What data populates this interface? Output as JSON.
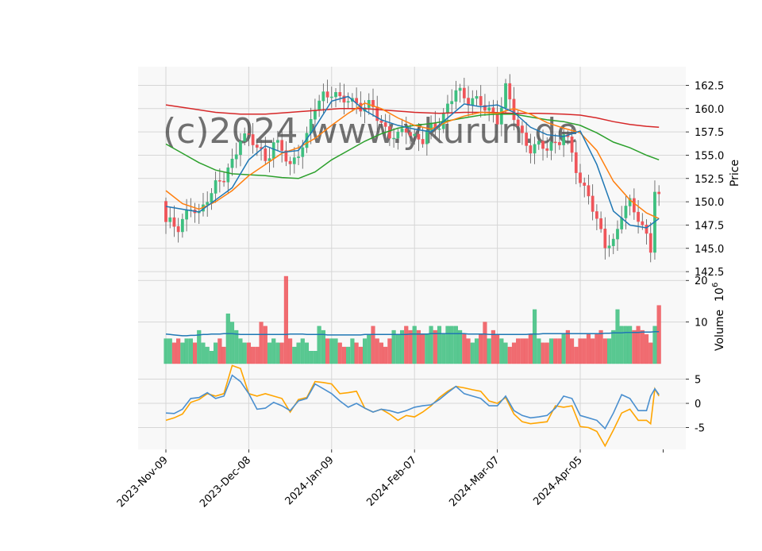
{
  "chart_data": {
    "type": "candlestick",
    "title": "",
    "watermark": "(c)2024 www.ykurun.de",
    "colors": {
      "up": "#3dbf7f",
      "down": "#ef5459",
      "ma_fast": "#1f77b4",
      "ma_mid": "#ff7f0e",
      "ma_slow": "#2ca02c",
      "ma_long": "#d62728",
      "macd": "#4a8fcf",
      "signal": "#ffa500",
      "volume_avg": "#1f77b4",
      "panel_bg": "#f8f8f8",
      "grid": "#d6d6d6"
    },
    "x_tick_labels": [
      "2023-Nov-09",
      "2023-Dec-08",
      "2024-Jan-09",
      "2024-Feb-07",
      "2024-Mar-07",
      "2024-Apr-05"
    ],
    "x_tick_bar_index": [
      0,
      20,
      40,
      60,
      80,
      100
    ],
    "bar_count": 120,
    "price_panel": {
      "ylabel": "Price",
      "ylim": [
        142.0,
        164.5
      ],
      "ticks": [
        "142.5",
        "145.0",
        "147.5",
        "150.0",
        "152.5",
        "155.0",
        "157.5",
        "160.0",
        "162.5"
      ],
      "ohlc_anchor_closes": [
        [
          0,
          147.5
        ],
        [
          3,
          147.6
        ],
        [
          6,
          149.3
        ],
        [
          8,
          148.3
        ],
        [
          10,
          150.8
        ],
        [
          12,
          151.8
        ],
        [
          14,
          152.3
        ],
        [
          16,
          154.2
        ],
        [
          18,
          157.2
        ],
        [
          20,
          156.7
        ],
        [
          22,
          155.8
        ],
        [
          24,
          154.7
        ],
        [
          26,
          156.3
        ],
        [
          28,
          155.4
        ],
        [
          30,
          153.8
        ],
        [
          32,
          155.6
        ],
        [
          34,
          156.6
        ],
        [
          36,
          160.2
        ],
        [
          38,
          161.6
        ],
        [
          40,
          161.8
        ],
        [
          42,
          160.6
        ],
        [
          44,
          161.2
        ],
        [
          46,
          160.7
        ],
        [
          48,
          159.9
        ],
        [
          50,
          160.1
        ],
        [
          52,
          158.6
        ],
        [
          54,
          157.2
        ],
        [
          56,
          156.7
        ],
        [
          58,
          158.1
        ],
        [
          60,
          157.0
        ],
        [
          62,
          156.5
        ],
        [
          64,
          157.8
        ],
        [
          66,
          158.6
        ],
        [
          68,
          160.2
        ],
        [
          70,
          161.8
        ],
        [
          72,
          161.2
        ],
        [
          74,
          161.3
        ],
        [
          76,
          160.3
        ],
        [
          78,
          159.6
        ],
        [
          80,
          159.1
        ],
        [
          82,
          162.2
        ],
        [
          84,
          159.0
        ],
        [
          86,
          157.0
        ],
        [
          88,
          156.0
        ],
        [
          90,
          155.8
        ],
        [
          92,
          155.7
        ],
        [
          94,
          156.5
        ],
        [
          96,
          157.3
        ],
        [
          98,
          155.0
        ],
        [
          100,
          152.0
        ],
        [
          102,
          151.2
        ],
        [
          104,
          147.5
        ],
        [
          106,
          145.4
        ],
        [
          108,
          145.8
        ],
        [
          110,
          148.8
        ],
        [
          112,
          149.5
        ],
        [
          114,
          148.5
        ],
        [
          116,
          146.5
        ],
        [
          117,
          145.0
        ],
        [
          118,
          151.0
        ],
        [
          119,
          150.0
        ]
      ],
      "ma_fast": [
        [
          0,
          149.5
        ],
        [
          4,
          149.2
        ],
        [
          8,
          148.9
        ],
        [
          12,
          150.2
        ],
        [
          16,
          151.5
        ],
        [
          20,
          154.5
        ],
        [
          24,
          156.0
        ],
        [
          28,
          155.3
        ],
        [
          32,
          155.5
        ],
        [
          36,
          158.0
        ],
        [
          40,
          160.8
        ],
        [
          44,
          161.3
        ],
        [
          48,
          159.8
        ],
        [
          52,
          158.8
        ],
        [
          56,
          158.2
        ],
        [
          60,
          157.8
        ],
        [
          64,
          157.5
        ],
        [
          68,
          159.0
        ],
        [
          72,
          160.5
        ],
        [
          76,
          160.2
        ],
        [
          80,
          160.4
        ],
        [
          84,
          159.6
        ],
        [
          88,
          158.0
        ],
        [
          92,
          157.2
        ],
        [
          96,
          157.0
        ],
        [
          100,
          157.6
        ],
        [
          104,
          154.0
        ],
        [
          108,
          149.0
        ],
        [
          112,
          147.5
        ],
        [
          116,
          147.2
        ],
        [
          119,
          148.2
        ]
      ],
      "ma_mid": [
        [
          0,
          151.2
        ],
        [
          4,
          149.8
        ],
        [
          8,
          149.2
        ],
        [
          12,
          150.0
        ],
        [
          16,
          151.2
        ],
        [
          20,
          152.8
        ],
        [
          24,
          154.0
        ],
        [
          28,
          155.2
        ],
        [
          32,
          155.8
        ],
        [
          36,
          156.8
        ],
        [
          40,
          158.2
        ],
        [
          44,
          159.5
        ],
        [
          48,
          160.6
        ],
        [
          52,
          160.0
        ],
        [
          56,
          159.0
        ],
        [
          60,
          158.2
        ],
        [
          64,
          157.8
        ],
        [
          68,
          158.6
        ],
        [
          72,
          159.2
        ],
        [
          76,
          159.6
        ],
        [
          80,
          159.5
        ],
        [
          84,
          160.0
        ],
        [
          88,
          159.4
        ],
        [
          92,
          158.5
        ],
        [
          96,
          157.9
        ],
        [
          100,
          157.4
        ],
        [
          104,
          155.5
        ],
        [
          108,
          152.2
        ],
        [
          112,
          150.2
        ],
        [
          116,
          148.8
        ],
        [
          119,
          148.2
        ]
      ],
      "ma_slow": [
        [
          0,
          156.2
        ],
        [
          4,
          155.2
        ],
        [
          8,
          154.2
        ],
        [
          12,
          153.4
        ],
        [
          16,
          153.0
        ],
        [
          20,
          152.9
        ],
        [
          24,
          152.8
        ],
        [
          28,
          152.6
        ],
        [
          32,
          152.5
        ],
        [
          36,
          153.2
        ],
        [
          40,
          154.5
        ],
        [
          44,
          155.5
        ],
        [
          48,
          156.5
        ],
        [
          52,
          157.3
        ],
        [
          56,
          157.9
        ],
        [
          60,
          158.2
        ],
        [
          64,
          158.4
        ],
        [
          68,
          158.7
        ],
        [
          72,
          159.0
        ],
        [
          76,
          159.3
        ],
        [
          80,
          159.4
        ],
        [
          84,
          159.4
        ],
        [
          88,
          159.1
        ],
        [
          92,
          158.8
        ],
        [
          96,
          158.6
        ],
        [
          100,
          158.2
        ],
        [
          104,
          157.4
        ],
        [
          108,
          156.4
        ],
        [
          112,
          155.8
        ],
        [
          116,
          155.0
        ],
        [
          119,
          154.5
        ]
      ],
      "ma_long": [
        [
          0,
          160.4
        ],
        [
          6,
          160.0
        ],
        [
          12,
          159.6
        ],
        [
          18,
          159.4
        ],
        [
          24,
          159.4
        ],
        [
          30,
          159.6
        ],
        [
          36,
          159.8
        ],
        [
          42,
          160.0
        ],
        [
          48,
          160.0
        ],
        [
          54,
          159.8
        ],
        [
          60,
          159.6
        ],
        [
          66,
          159.5
        ],
        [
          72,
          159.6
        ],
        [
          78,
          159.6
        ],
        [
          84,
          159.5
        ],
        [
          90,
          159.5
        ],
        [
          96,
          159.4
        ],
        [
          100,
          159.3
        ],
        [
          104,
          159.0
        ],
        [
          108,
          158.6
        ],
        [
          112,
          158.3
        ],
        [
          116,
          158.1
        ],
        [
          119,
          158.0
        ]
      ]
    },
    "volume_panel": {
      "ylabel": "Volume  10^6",
      "ylabel_text": "Volume",
      "ylabel_unit": "10",
      "ylabel_exp": "6",
      "ylim": [
        0,
        21
      ],
      "ticks": [
        "10",
        "20"
      ],
      "ticks_values": [
        10,
        20
      ],
      "values": [
        6,
        6,
        5,
        6,
        5,
        6,
        6,
        5,
        8,
        5,
        4,
        3,
        5,
        6,
        4,
        12,
        10,
        8,
        6,
        5,
        5,
        4,
        4,
        10,
        9,
        5,
        6,
        5,
        5,
        21,
        6,
        4,
        5,
        6,
        5,
        3,
        3,
        9,
        8,
        6,
        6,
        6,
        5,
        4,
        4,
        6,
        5,
        4,
        6,
        7,
        9,
        6,
        5,
        4,
        6,
        8,
        7,
        8,
        9,
        8,
        9,
        8,
        7,
        7,
        9,
        8,
        9,
        7,
        9,
        9,
        9,
        8,
        7,
        6,
        5,
        6,
        7,
        10,
        6,
        8,
        7,
        6,
        5,
        4,
        5,
        6,
        6,
        6,
        7,
        13,
        6,
        5,
        5,
        6,
        6,
        6,
        7,
        8,
        6,
        4,
        6,
        6,
        7,
        6,
        7,
        8,
        6,
        6,
        8,
        13,
        9,
        9,
        9,
        8,
        9,
        8,
        7,
        5,
        9,
        14
      ],
      "avg": [
        7.1,
        7.0,
        6.9,
        6.8,
        6.7,
        6.7,
        6.8,
        6.8,
        6.9,
        7.0,
        7.0,
        7.1,
        7.1,
        7.1,
        7.2,
        7.2,
        7.2,
        7.1,
        7.0,
        7.0,
        7.0,
        7.0,
        7.0,
        7.0,
        7.0,
        7.0,
        7.0,
        7.0,
        7.0,
        7.0,
        7.1,
        7.1,
        7.1,
        7.1,
        7.0,
        7.0,
        7.0,
        7.0,
        7.0,
        6.9,
        6.9,
        6.9,
        6.9,
        6.9,
        6.9,
        6.9,
        6.9,
        6.9,
        7.0,
        7.0,
        7.0,
        7.0,
        7.0,
        7.0,
        7.0,
        7.0,
        7.0,
        7.0,
        7.0,
        7.1,
        7.1,
        7.1,
        7.1,
        7.1,
        7.2,
        7.2,
        7.2,
        7.2,
        7.2,
        7.2,
        7.2,
        7.2,
        7.2,
        7.1,
        7.1,
        7.1,
        7.1,
        7.1,
        7.0,
        7.0,
        7.0,
        7.0,
        7.0,
        7.0,
        7.0,
        7.0,
        7.0,
        7.0,
        7.1,
        7.1,
        7.1,
        7.2,
        7.2,
        7.2,
        7.2,
        7.2,
        7.2,
        7.2,
        7.2,
        7.2,
        7.2,
        7.2,
        7.2,
        7.2,
        7.2,
        7.2,
        7.3,
        7.3,
        7.4,
        7.4,
        7.4,
        7.5,
        7.5,
        7.5,
        7.5,
        7.6,
        7.6,
        7.6,
        7.7,
        7.7
      ]
    },
    "macd_panel": {
      "ylim": [
        -9.5,
        8.2
      ],
      "ticks": [
        "-5",
        "0",
        "5"
      ],
      "ticks_values": [
        -5,
        0,
        5
      ],
      "macd": [
        [
          0,
          -2.0
        ],
        [
          2,
          -2.1
        ],
        [
          4,
          -1.2
        ],
        [
          6,
          1.0
        ],
        [
          8,
          1.2
        ],
        [
          10,
          2.2
        ],
        [
          12,
          1.0
        ],
        [
          14,
          1.5
        ],
        [
          16,
          5.8
        ],
        [
          18,
          4.5
        ],
        [
          20,
          2.0
        ],
        [
          22,
          -1.2
        ],
        [
          24,
          -1.0
        ],
        [
          26,
          0.2
        ],
        [
          28,
          -0.5
        ],
        [
          30,
          -1.5
        ],
        [
          32,
          0.5
        ],
        [
          34,
          1.0
        ],
        [
          36,
          4.0
        ],
        [
          38,
          3.0
        ],
        [
          40,
          2.0
        ],
        [
          42,
          0.5
        ],
        [
          44,
          -0.8
        ],
        [
          46,
          0.0
        ],
        [
          48,
          -1.0
        ],
        [
          50,
          -1.8
        ],
        [
          52,
          -1.2
        ],
        [
          54,
          -1.5
        ],
        [
          56,
          -2.0
        ],
        [
          58,
          -1.5
        ],
        [
          60,
          -0.8
        ],
        [
          62,
          -0.5
        ],
        [
          64,
          -0.3
        ],
        [
          66,
          0.8
        ],
        [
          68,
          2.2
        ],
        [
          70,
          3.5
        ],
        [
          72,
          2.0
        ],
        [
          74,
          1.5
        ],
        [
          76,
          1.0
        ],
        [
          78,
          -0.5
        ],
        [
          80,
          -0.5
        ],
        [
          82,
          1.5
        ],
        [
          84,
          -1.5
        ],
        [
          86,
          -2.5
        ],
        [
          88,
          -3.0
        ],
        [
          90,
          -2.8
        ],
        [
          92,
          -2.5
        ],
        [
          94,
          -1.0
        ],
        [
          96,
          1.5
        ],
        [
          98,
          1.0
        ],
        [
          100,
          -2.5
        ],
        [
          102,
          -3.0
        ],
        [
          104,
          -3.5
        ],
        [
          106,
          -5.2
        ],
        [
          108,
          -2.0
        ],
        [
          110,
          1.8
        ],
        [
          112,
          1.0
        ],
        [
          114,
          -1.5
        ],
        [
          116,
          -1.5
        ],
        [
          117,
          1.5
        ],
        [
          118,
          3.0
        ],
        [
          119,
          1.8
        ]
      ],
      "signal": [
        [
          0,
          -3.5
        ],
        [
          2,
          -3.0
        ],
        [
          4,
          -2.2
        ],
        [
          6,
          0.2
        ],
        [
          8,
          0.8
        ],
        [
          10,
          2.0
        ],
        [
          12,
          1.5
        ],
        [
          14,
          2.0
        ],
        [
          16,
          7.8
        ],
        [
          18,
          7.2
        ],
        [
          20,
          2.0
        ],
        [
          22,
          1.5
        ],
        [
          24,
          2.0
        ],
        [
          26,
          1.5
        ],
        [
          28,
          1.0
        ],
        [
          30,
          -1.8
        ],
        [
          32,
          0.8
        ],
        [
          34,
          1.2
        ],
        [
          36,
          4.5
        ],
        [
          38,
          4.3
        ],
        [
          40,
          4.0
        ],
        [
          42,
          2.0
        ],
        [
          44,
          2.2
        ],
        [
          46,
          2.5
        ],
        [
          48,
          -1.0
        ],
        [
          50,
          -1.8
        ],
        [
          52,
          -1.2
        ],
        [
          54,
          -2.2
        ],
        [
          56,
          -3.5
        ],
        [
          58,
          -2.5
        ],
        [
          60,
          -2.8
        ],
        [
          62,
          -1.8
        ],
        [
          64,
          -0.5
        ],
        [
          66,
          1.2
        ],
        [
          68,
          2.5
        ],
        [
          70,
          3.5
        ],
        [
          72,
          3.2
        ],
        [
          74,
          2.8
        ],
        [
          76,
          2.5
        ],
        [
          78,
          0.5
        ],
        [
          80,
          0.0
        ],
        [
          82,
          1.2
        ],
        [
          84,
          -2.2
        ],
        [
          86,
          -3.8
        ],
        [
          88,
          -4.2
        ],
        [
          90,
          -4.0
        ],
        [
          92,
          -3.8
        ],
        [
          94,
          -0.5
        ],
        [
          96,
          -0.8
        ],
        [
          98,
          -0.5
        ],
        [
          100,
          -4.8
        ],
        [
          102,
          -5.0
        ],
        [
          104,
          -5.8
        ],
        [
          106,
          -8.8
        ],
        [
          108,
          -5.5
        ],
        [
          110,
          -2.0
        ],
        [
          112,
          -1.2
        ],
        [
          114,
          -3.5
        ],
        [
          116,
          -3.5
        ],
        [
          117,
          -4.2
        ],
        [
          118,
          3.0
        ],
        [
          119,
          1.5
        ]
      ]
    },
    "grid": true
  }
}
